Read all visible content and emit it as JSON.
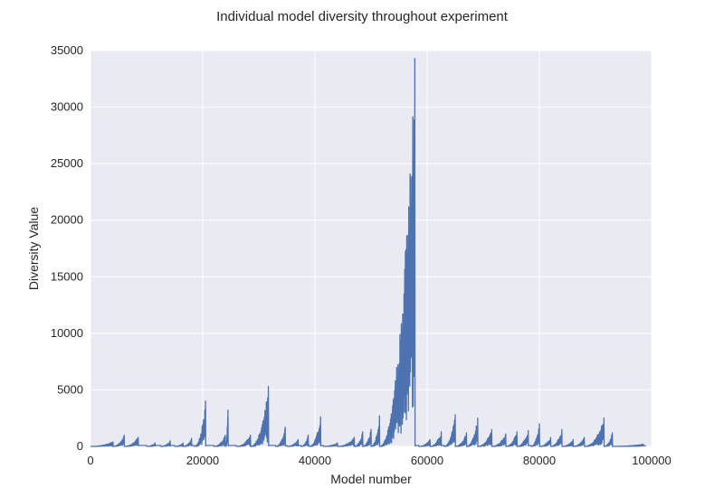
{
  "chart_data": {
    "type": "line",
    "title": "Individual model diversity throughout experiment",
    "xlabel": "Model number",
    "ylabel": "Diversity Value",
    "xlim": [
      0,
      100000
    ],
    "ylim": [
      0,
      35000
    ],
    "xticks": [
      0,
      20000,
      40000,
      60000,
      80000,
      100000
    ],
    "yticks": [
      0,
      5000,
      10000,
      15000,
      20000,
      25000,
      30000,
      35000
    ],
    "grid": true,
    "series_color": "#4c72b0",
    "series": [
      {
        "bursts": [
          {
            "start": 0,
            "end": 4000,
            "peak": 400
          },
          {
            "start": 4000,
            "end": 6000,
            "peak": 1000
          },
          {
            "start": 6000,
            "end": 8500,
            "peak": 800
          },
          {
            "start": 10000,
            "end": 11500,
            "peak": 300
          },
          {
            "start": 12500,
            "end": 14200,
            "peak": 500
          },
          {
            "start": 15000,
            "end": 16500,
            "peak": 300
          },
          {
            "start": 16500,
            "end": 18000,
            "peak": 700
          },
          {
            "start": 18500,
            "end": 20500,
            "peak": 4000
          },
          {
            "start": 22000,
            "end": 24000,
            "peak": 1000
          },
          {
            "start": 24000,
            "end": 24500,
            "peak": 3200
          },
          {
            "start": 26000,
            "end": 28500,
            "peak": 1000
          },
          {
            "start": 28500,
            "end": 31700,
            "peak": 5300
          },
          {
            "start": 33000,
            "end": 34700,
            "peak": 1700
          },
          {
            "start": 35000,
            "end": 37000,
            "peak": 600
          },
          {
            "start": 37500,
            "end": 38800,
            "peak": 1000
          },
          {
            "start": 39000,
            "end": 41000,
            "peak": 2600
          },
          {
            "start": 41500,
            "end": 44000,
            "peak": 300
          },
          {
            "start": 44000,
            "end": 47000,
            "peak": 800
          },
          {
            "start": 47000,
            "end": 48500,
            "peak": 1300
          },
          {
            "start": 48500,
            "end": 50000,
            "peak": 1500
          },
          {
            "start": 50000,
            "end": 51500,
            "peak": 2700
          },
          {
            "start": 51500,
            "end": 57800,
            "peak": 34300
          },
          {
            "start": 58500,
            "end": 60500,
            "peak": 600
          },
          {
            "start": 60500,
            "end": 62500,
            "peak": 1300
          },
          {
            "start": 63000,
            "end": 65000,
            "peak": 2800
          },
          {
            "start": 65000,
            "end": 67000,
            "peak": 1200
          },
          {
            "start": 67000,
            "end": 69000,
            "peak": 2500
          },
          {
            "start": 69000,
            "end": 71500,
            "peak": 1500
          },
          {
            "start": 71500,
            "end": 74000,
            "peak": 1100
          },
          {
            "start": 74000,
            "end": 76000,
            "peak": 1300
          },
          {
            "start": 76000,
            "end": 78000,
            "peak": 1400
          },
          {
            "start": 78500,
            "end": 80000,
            "peak": 2000
          },
          {
            "start": 80000,
            "end": 82000,
            "peak": 800
          },
          {
            "start": 82000,
            "end": 84000,
            "peak": 1500
          },
          {
            "start": 84000,
            "end": 86000,
            "peak": 600
          },
          {
            "start": 86000,
            "end": 88000,
            "peak": 800
          },
          {
            "start": 88000,
            "end": 91500,
            "peak": 2500
          },
          {
            "start": 91500,
            "end": 93000,
            "peak": 1200
          },
          {
            "start": 93000,
            "end": 98500,
            "peak": 200
          }
        ]
      }
    ]
  }
}
